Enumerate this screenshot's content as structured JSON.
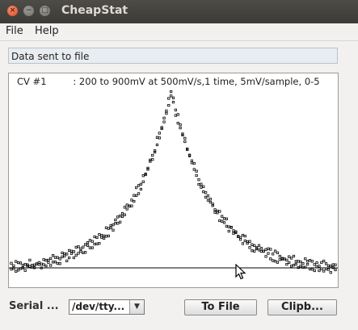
{
  "window": {
    "title": "CheapStat",
    "controls": {
      "close": "×",
      "minimize": "−",
      "maximize": "□"
    }
  },
  "menu": {
    "file": "File",
    "help": "Help"
  },
  "status": "Data sent to file",
  "plot": {
    "label": "CV #1         : 200 to 900mV at 500mV/s,1 time, 5mV/sample, 0-5"
  },
  "controls": {
    "serial_label": "Serial ...",
    "port_value": "/dev/tty...",
    "to_file_label": "To File",
    "clipboard_label": "Clipb..."
  },
  "icons": {
    "dropdown": "chevron-down-icon",
    "cursor": "mouse-pointer-icon"
  },
  "colors": {
    "titlebar": "#3c3b37",
    "close": "#df4a21",
    "status_bg": "#e9edf2",
    "plot_bg": "#ffffff",
    "points": "#000000"
  },
  "chart_data": {
    "type": "scatter",
    "x_range": [
      200,
      900
    ],
    "step": 5,
    "grid": false,
    "legend": "none",
    "series": [
      {
        "peak_x": 545,
        "peak_y": 0.97,
        "baseline_y": 0.05,
        "decay_width": 90,
        "note_free": true
      }
    ]
  }
}
